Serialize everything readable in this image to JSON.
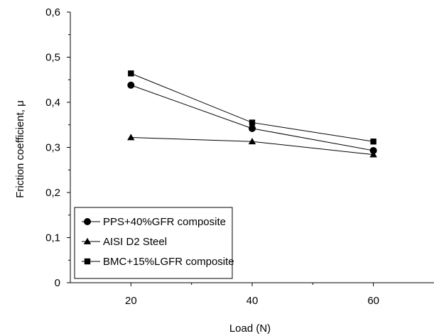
{
  "chart_data": {
    "type": "line",
    "title": "",
    "xlabel": "Load (N)",
    "ylabel": "Friction coefficient,  μ",
    "x": [
      20,
      40,
      60
    ],
    "x_ticks": [
      "20",
      "40",
      "60"
    ],
    "y_ticks": [
      "0",
      "0,1",
      "0,2",
      "0,3",
      "0,4",
      "0,5",
      "0,6"
    ],
    "xlim": [
      10,
      70
    ],
    "ylim": [
      0,
      0.6
    ],
    "grid": false,
    "legend_position": "bottom-left",
    "series": [
      {
        "name": "PPS+40%GFR composite",
        "marker": "circle",
        "values": [
          0.438,
          0.342,
          0.293
        ]
      },
      {
        "name": "AISI D2 Steel",
        "marker": "triangle",
        "values": [
          0.322,
          0.313,
          0.284
        ]
      },
      {
        "name": "BMC+15%LGFR composite",
        "marker": "square",
        "values": [
          0.464,
          0.355,
          0.313
        ]
      }
    ],
    "colors": {
      "line": "#000000",
      "background": "#ffffff"
    }
  }
}
